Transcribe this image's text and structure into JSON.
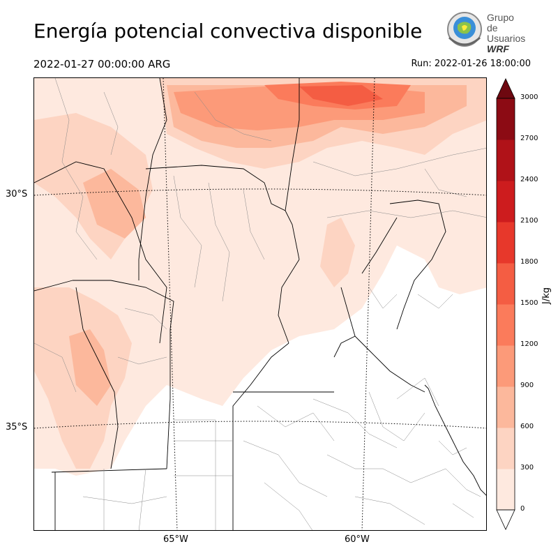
{
  "header": {
    "title": "Energía potencial convectiva disponible",
    "valid_time": "2022-01-27 00:00:00 ARG",
    "run_time": "Run: 2022-01-26 18:00:00"
  },
  "logo": {
    "line1": "Grupo de",
    "line2": "Usuarios",
    "line3": "WRF"
  },
  "map": {
    "lat_labels": [
      "30°S",
      "35°S"
    ],
    "lon_labels": [
      "65°W",
      "60°W"
    ]
  },
  "colorbar": {
    "unit": "J/kg",
    "ticks": [
      "0",
      "300",
      "600",
      "900",
      "1200",
      "1500",
      "1800",
      "2100",
      "2400",
      "2700",
      "3000"
    ],
    "colors": [
      "#fee9df",
      "#fdd4c2",
      "#fcb89c",
      "#fc9a79",
      "#fb7b5b",
      "#f45d43",
      "#e7382b",
      "#cd1c1e",
      "#b01218",
      "#8c0b14",
      "#6e0810"
    ]
  }
}
